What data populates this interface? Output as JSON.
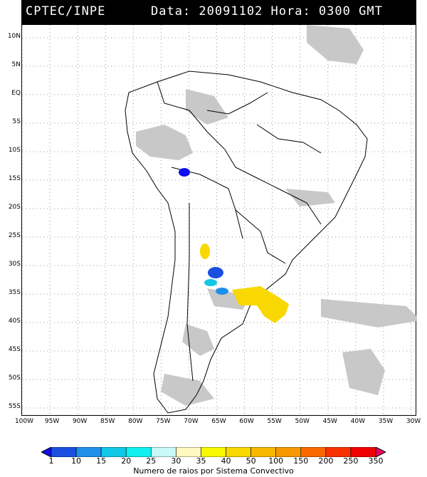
{
  "header": {
    "source": "CPTEC/INPE",
    "stamp": "Data: 20091102 Hora: 0300 GMT"
  },
  "map": {
    "lat_labels": [
      "10N",
      "5N",
      "EQ",
      "5S",
      "10S",
      "15S",
      "20S",
      "25S",
      "30S",
      "35S",
      "40S",
      "45S",
      "50S",
      "55S"
    ],
    "lon_labels": [
      "100W",
      "95W",
      "90W",
      "85W",
      "80W",
      "75W",
      "70W",
      "65W",
      "60W",
      "55W",
      "50W",
      "45W",
      "40W",
      "35W",
      "30W"
    ],
    "colors": {
      "land_line": "#000000",
      "cloud": "#c8c8c8",
      "grid": "#9a9a9a"
    }
  },
  "colorbar": {
    "labels": [
      "1",
      "10",
      "15",
      "20",
      "25",
      "30",
      "35",
      "40",
      "50",
      "100",
      "150",
      "200",
      "250",
      "350"
    ],
    "colors": [
      "#1010ee",
      "#1a4fe0",
      "#1f8fe8",
      "#11c8e8",
      "#10f0f0",
      "#c8f8f8",
      "#fff8c0",
      "#f8f800",
      "#f8d800",
      "#f8b800",
      "#f89800",
      "#f86800",
      "#f83000",
      "#f00000",
      "#f00060"
    ],
    "caption": "Numero de raios por Sistema Convectivo"
  },
  "systems": [
    {
      "name": "system-peru",
      "color": "#1010ee"
    },
    {
      "name": "system-argentina-yellow-north",
      "color": "#f8d800"
    },
    {
      "name": "system-argentina-blue",
      "color": "#1a4fe0"
    },
    {
      "name": "system-argentina-cyan",
      "color": "#11c8e8"
    },
    {
      "name": "system-argentina-lightblue",
      "color": "#1f8fe8"
    },
    {
      "name": "system-uruguay-yellow",
      "color": "#f8d800"
    }
  ]
}
